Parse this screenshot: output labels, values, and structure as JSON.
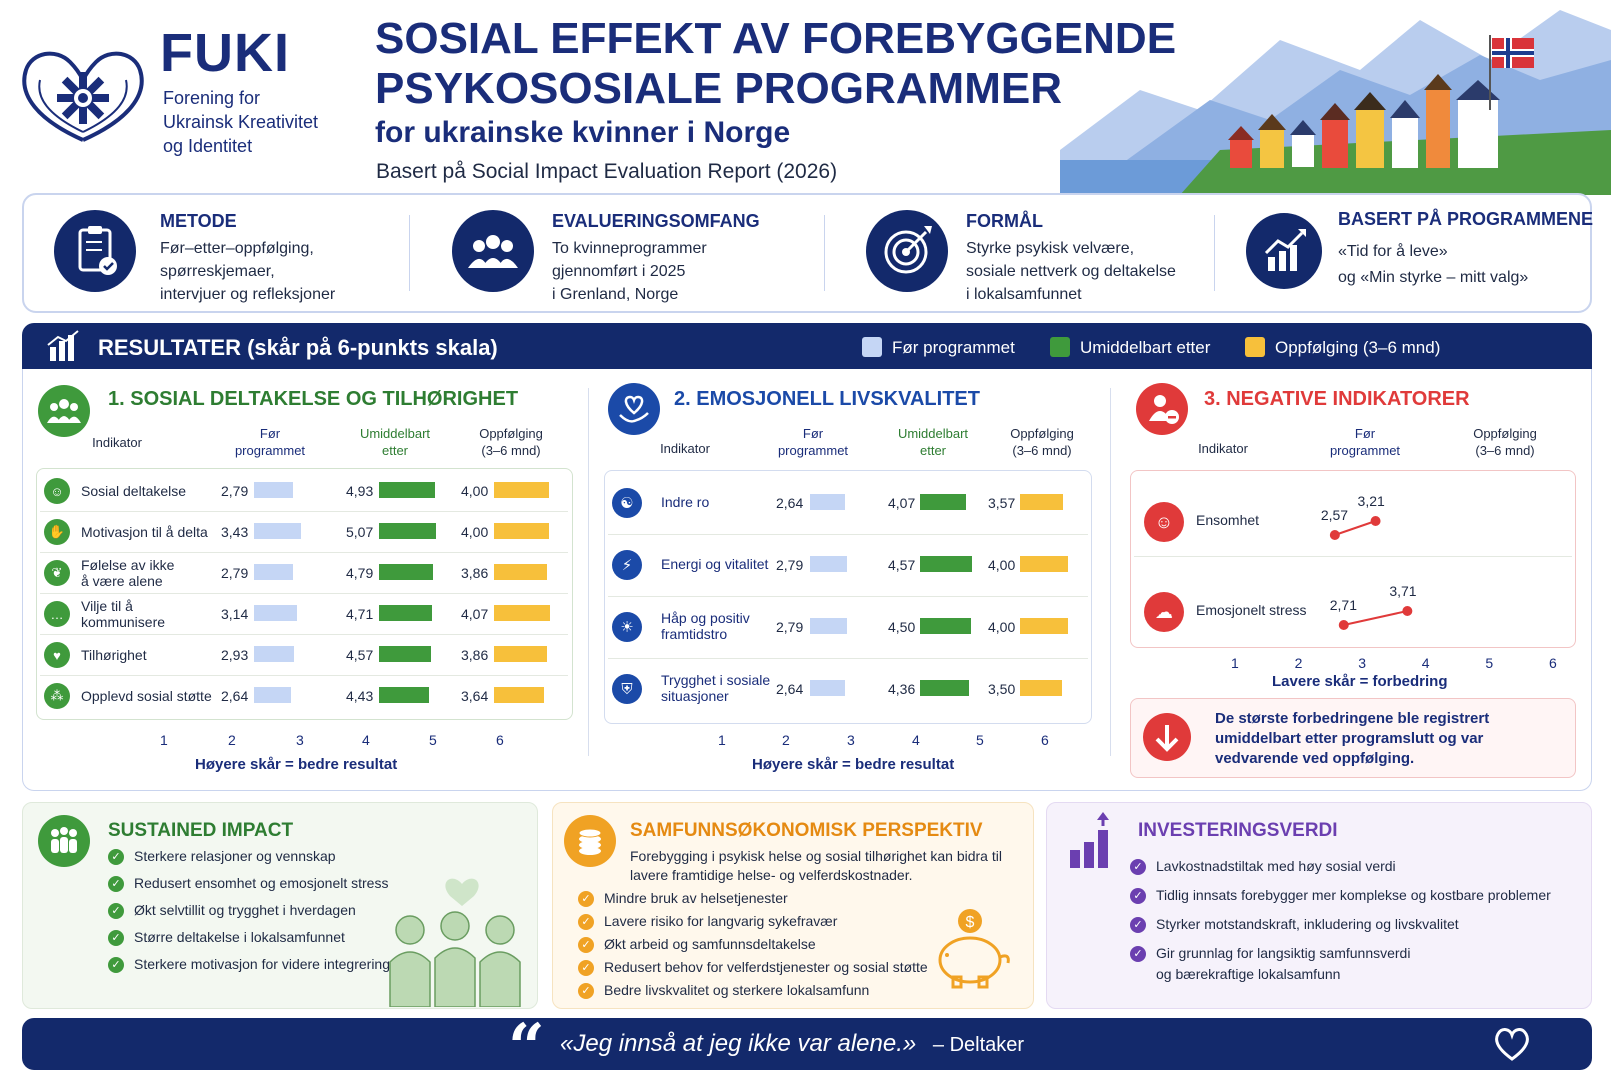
{
  "header": {
    "brand": "FUKI",
    "brand_sub": [
      "Forening for",
      "Ukrainsk Kreativitet",
      "og Identitet"
    ],
    "title_line1": "SOSIAL EFFEKT AV FOREBYGGENDE",
    "title_line2": "PSYKOSOSIALE PROGRAMMER",
    "subtitle": "for ukrainske kvinner i Norge",
    "basis": "Basert på Social Impact Evaluation Report (2026)"
  },
  "info": [
    {
      "icon": "clipboard-check-icon",
      "head": "METODE",
      "text": "Før–etter–oppfølging,\nspørreskjemaer,\nintervjuer og refleksjoner"
    },
    {
      "icon": "people-group-icon",
      "head": "EVALUERINGSOMFANG",
      "text": "To kvinneprogrammer\ngjennomført i 2025\ni Grenland, Norge"
    },
    {
      "icon": "target-icon",
      "head": "FORMÅL",
      "text": "Styrke psykisk velvære,\nsosiale nettverk og deltakelse\ni lokalsamfunnet"
    },
    {
      "icon": "growth-chart-icon",
      "head": "BASERT PÅ PROGRAMMENE",
      "text": "«Tid for å leve»\nog «Min styrke – mitt valg»"
    }
  ],
  "results": {
    "title": "RESULTATER (skår på 6-punkts skala)",
    "legend": [
      {
        "label": "Før programmet",
        "color": "#c5d6f5"
      },
      {
        "label": "Umiddelbart etter",
        "color": "#3f9a3c"
      },
      {
        "label": "Oppfølging (3–6 mnd)",
        "color": "#f7c03b"
      }
    ],
    "col_headers": {
      "indicator": "Indikator",
      "before": "Før\nprogrammet",
      "after": "Umiddelbart\netter",
      "follow": "Oppfølging\n(3–6 mnd)"
    },
    "axis_ticks": [
      "1",
      "2",
      "3",
      "4",
      "5",
      "6"
    ],
    "higher_caption": "Høyere skår = bedre resultat",
    "lower_caption": "Lavere skår = forbedring",
    "section1": {
      "title": "1. SOSIAL DELTAKELSE OG TILHØRIGHET",
      "rows": [
        {
          "label": "Sosial deltakelse",
          "icon": "person-icon",
          "before": "2,79",
          "after": "4,93",
          "follow": "4,00"
        },
        {
          "label": "Motivasjon til å delta",
          "icon": "handshake-icon",
          "before": "3,43",
          "after": "5,07",
          "follow": "4,00"
        },
        {
          "label": "Følelse av ikke\nå være alene",
          "icon": "leaf-icon",
          "before": "2,79",
          "after": "4,79",
          "follow": "3,86"
        },
        {
          "label": "Vilje til å\nkommunisere",
          "icon": "chat-icon",
          "before": "3,14",
          "after": "4,71",
          "follow": "4,07"
        },
        {
          "label": "Tilhørighet",
          "icon": "heart-icon",
          "before": "2,93",
          "after": "4,57",
          "follow": "3,86"
        },
        {
          "label": "Opplevd sosial støtte",
          "icon": "group-icon",
          "before": "2,64",
          "after": "4,43",
          "follow": "3,64"
        }
      ]
    },
    "section2": {
      "title": "2. EMOSJONELL LIVSKVALITET",
      "rows": [
        {
          "label": "Indre ro",
          "icon": "meditation-icon",
          "before": "2,64",
          "after": "4,07",
          "follow": "3,57"
        },
        {
          "label": "Energi og vitalitet",
          "icon": "lightning-icon",
          "before": "2,79",
          "after": "4,57",
          "follow": "4,00"
        },
        {
          "label": "Håp og positiv\nframtidstro",
          "icon": "sun-icon",
          "before": "2,79",
          "after": "4,50",
          "follow": "4,00"
        },
        {
          "label": "Trygghet i sosiale\nsituasjoner",
          "icon": "shield-icon",
          "before": "2,64",
          "after": "4,36",
          "follow": "3,50"
        }
      ]
    },
    "section3": {
      "title": "3. NEGATIVE INDIKATORER",
      "col_before": "Før\nprogrammet",
      "col_follow": "Oppfølging\n(3–6 mnd)",
      "rows": [
        {
          "label": "Ensomhet",
          "icon": "lonely-person-icon",
          "before": "3,21",
          "follow": "2,57"
        },
        {
          "label": "Emosjonelt stress",
          "icon": "storm-cloud-icon",
          "before": "3,71",
          "follow": "2,71"
        }
      ],
      "note": "De største forbedringene ble registrert umiddelbart etter programslutt og var vedvarende ved oppfølging."
    }
  },
  "chart_data": [
    {
      "type": "bar",
      "title": "1. SOSIAL DELTAKELSE OG TILHØRIGHET",
      "categories": [
        "Sosial deltakelse",
        "Motivasjon til å delta",
        "Følelse av ikke å være alene",
        "Vilje til å kommunisere",
        "Tilhørighet",
        "Opplevd sosial støtte"
      ],
      "series": [
        {
          "name": "Før programmet",
          "values": [
            2.79,
            3.43,
            2.79,
            3.14,
            2.93,
            2.64
          ]
        },
        {
          "name": "Umiddelbart etter",
          "values": [
            4.93,
            5.07,
            4.79,
            4.71,
            4.57,
            4.43
          ]
        },
        {
          "name": "Oppfølging (3–6 mnd)",
          "values": [
            4.0,
            4.0,
            3.86,
            4.07,
            3.86,
            3.64
          ]
        }
      ],
      "xlim": [
        1,
        6
      ],
      "xlabel": "Høyere skår = bedre resultat"
    },
    {
      "type": "bar",
      "title": "2. EMOSJONELL LIVSKVALITET",
      "categories": [
        "Indre ro",
        "Energi og vitalitet",
        "Håp og positiv framtidstro",
        "Trygghet i sosiale situasjoner"
      ],
      "series": [
        {
          "name": "Før programmet",
          "values": [
            2.64,
            2.79,
            2.79,
            2.64
          ]
        },
        {
          "name": "Umiddelbart etter",
          "values": [
            4.07,
            4.57,
            4.5,
            4.36
          ]
        },
        {
          "name": "Oppfølging (3–6 mnd)",
          "values": [
            3.57,
            4.0,
            4.0,
            3.5
          ]
        }
      ],
      "xlim": [
        1,
        6
      ],
      "xlabel": "Høyere skår = bedre resultat"
    },
    {
      "type": "line",
      "title": "3. NEGATIVE INDIKATORER",
      "categories": [
        "Ensomhet",
        "Emosjonelt stress"
      ],
      "series": [
        {
          "name": "Før programmet",
          "values": [
            3.21,
            3.71
          ]
        },
        {
          "name": "Oppfølging (3–6 mnd)",
          "values": [
            2.57,
            2.71
          ]
        }
      ],
      "xlim": [
        1,
        6
      ],
      "xlabel": "Lavere skår = forbedring"
    }
  ],
  "bottom": {
    "sustained": {
      "title": "SUSTAINED IMPACT",
      "items": [
        "Sterkere relasjoner og vennskap",
        "Redusert ensomhet og emosjonelt stress",
        "Økt selvtillit og trygghet i hverdagen",
        "Større deltakelse i lokalsamfunnet",
        "Sterkere motivasjon for videre integrering"
      ]
    },
    "economy": {
      "title": "SAMFUNNSØKONOMISK PERSPEKTIV",
      "intro": [
        "Forebygging i psykisk helse og sosial tilhørighet kan bidra til",
        "lavere framtidige helse- og velferdskostnader."
      ],
      "items": [
        "Mindre bruk av helsetjenester",
        "Lavere risiko for langvarig sykefravær",
        "Økt arbeid og samfunnsdeltakelse",
        "Redusert behov for velferdstjenester og sosial støtte",
        "Bedre livskvalitet og sterkere lokalsamfunn"
      ]
    },
    "investment": {
      "title": "INVESTERINGSVERDI",
      "items": [
        "Lavkostnadstiltak med høy sosial verdi",
        "Tidlig innsats forebygger mer komplekse og kostbare problemer",
        "Styrker motstandskraft, inkludering og livskvalitet",
        "Gir grunnlag for langsiktig samfunnsverdi",
        "og bærekraftige lokalsamfunn"
      ]
    }
  },
  "quote": {
    "mark": "“",
    "text": "«Jeg innså at jeg ikke var alene.»",
    "author": "– Deltaker"
  },
  "colors": {
    "navy": "#13296b",
    "green": "#3f9a3c",
    "amber": "#f7c03b",
    "light_blue": "#c5d6f5",
    "red": "#e03a3a",
    "purple": "#6b3fb0",
    "orange": "#f0a224"
  }
}
